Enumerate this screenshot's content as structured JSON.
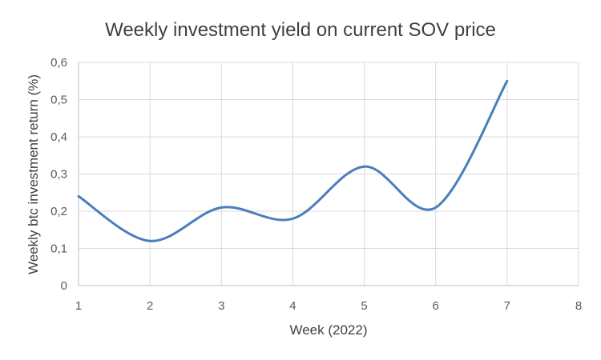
{
  "chart_data": {
    "type": "line",
    "title": "Weekly investment yield on current SOV price",
    "xlabel": "Week (2022)",
    "ylabel": "Weekly btc investment return (%)",
    "xlim": [
      1,
      8
    ],
    "ylim": [
      0,
      0.6
    ],
    "x_ticks": [
      "1",
      "2",
      "3",
      "4",
      "5",
      "6",
      "7",
      "8"
    ],
    "y_ticks": [
      "0",
      "0,1",
      "0,2",
      "0,3",
      "0,4",
      "0,5",
      "0,6"
    ],
    "grid": true,
    "smooth": true,
    "line_color": "#4a7ebb",
    "series": [
      {
        "x": [
          1,
          2,
          3,
          4,
          5,
          6,
          7
        ],
        "values": [
          0.24,
          0.12,
          0.21,
          0.18,
          0.32,
          0.21,
          0.55
        ]
      }
    ]
  }
}
